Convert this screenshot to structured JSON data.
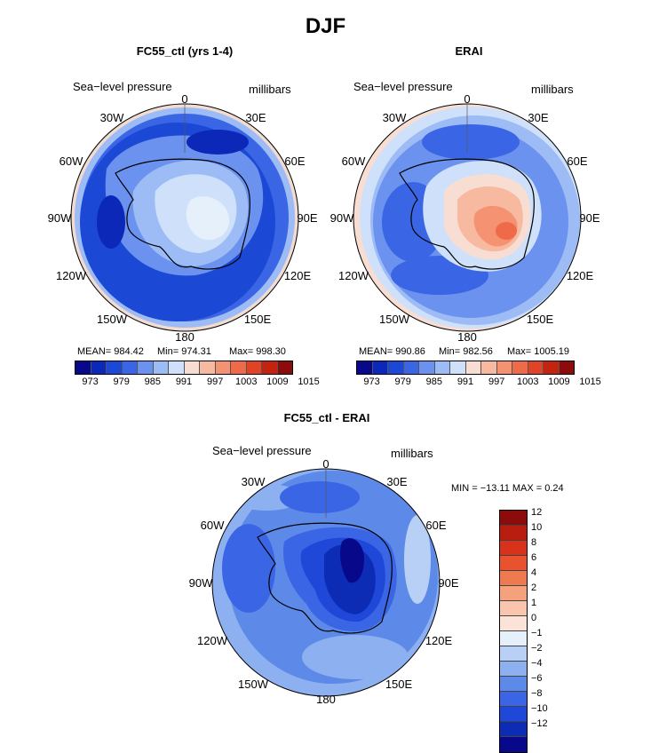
{
  "figure": {
    "title": "DJF",
    "panels": [
      {
        "title": "FC55_ctl (yrs 1-4)",
        "variable": "Sea−level pressure",
        "units": "millibars",
        "stats": {
          "mean": "MEAN= 984.42",
          "min": "Min= 974.31",
          "max": "Max= 998.30"
        }
      },
      {
        "title": "ERAI",
        "variable": "Sea−level pressure",
        "units": "millibars",
        "stats": {
          "mean": "MEAN= 990.86",
          "min": "Min= 982.56",
          "max": "Max= 1005.19"
        }
      },
      {
        "title": "FC55_ctl - ERAI",
        "variable": "Sea−level pressure",
        "units": "millibars",
        "stats": {
          "range": "MIN = −13.11 MAX =    0.24"
        }
      }
    ],
    "longitudes": {
      "0": "0",
      "30E": "30E",
      "60E": "60E",
      "90E": "90E",
      "120E": "120E",
      "150E": "150E",
      "180": "180",
      "150W": "150W",
      "120W": "120W",
      "90W": "90W",
      "60W": "60W",
      "30W": "30W"
    },
    "colorbar_top": {
      "colors": [
        "#08088a",
        "#0b28b8",
        "#1c48d6",
        "#3a66e6",
        "#6a92ee",
        "#9dbcf5",
        "#cfe0fa",
        "#f8ddd2",
        "#f7b9a0",
        "#f49272",
        "#ef6a48",
        "#e04325",
        "#c4240f",
        "#8c0b0b"
      ],
      "ticks": [
        "973",
        "979",
        "985",
        "991",
        "997",
        "1003",
        "1009",
        "1015"
      ]
    },
    "colorbar_diff": {
      "colors": [
        "#8c0b0b",
        "#b81d10",
        "#d8321a",
        "#e9522f",
        "#f07a50",
        "#f5a27c",
        "#f9c6ad",
        "#fbe4d7",
        "#e6f0fb",
        "#b8d0f6",
        "#8db1f0",
        "#5d89e8",
        "#3a66e6",
        "#1f48d8",
        "#0c2cb6",
        "#08088a"
      ],
      "ticks": [
        "12",
        "10",
        "8",
        "6",
        "4",
        "2",
        "1",
        "0",
        "−1",
        "−2",
        "−4",
        "−6",
        "−8",
        "−10",
        "−12"
      ]
    }
  }
}
